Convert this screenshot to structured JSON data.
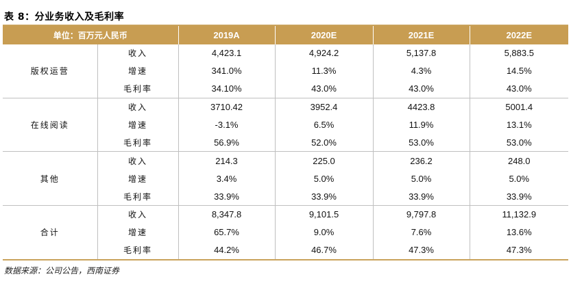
{
  "title": "表 8：分业务收入及毛利率",
  "header": {
    "unit": "单位：百万元人民币",
    "years": [
      "2019A",
      "2020E",
      "2021E",
      "2022E"
    ]
  },
  "groups": [
    {
      "name": "版权运营",
      "rows": [
        {
          "metric": "收入",
          "values": [
            "4,423.1",
            "4,924.2",
            "5,137.8",
            "5,883.5"
          ]
        },
        {
          "metric": "增速",
          "values": [
            "341.0%",
            "11.3%",
            "4.3%",
            "14.5%"
          ]
        },
        {
          "metric": "毛利率",
          "values": [
            "34.10%",
            "43.0%",
            "43.0%",
            "43.0%"
          ]
        }
      ]
    },
    {
      "name": "在线阅读",
      "rows": [
        {
          "metric": "收入",
          "values": [
            "3710.42",
            "3952.4",
            "4423.8",
            "5001.4"
          ]
        },
        {
          "metric": "增速",
          "values": [
            "-3.1%",
            "6.5%",
            "11.9%",
            "13.1%"
          ]
        },
        {
          "metric": "毛利率",
          "values": [
            "56.9%",
            "52.0%",
            "53.0%",
            "53.0%"
          ]
        }
      ]
    },
    {
      "name": "其他",
      "rows": [
        {
          "metric": "收入",
          "values": [
            "214.3",
            "225.0",
            "236.2",
            "248.0"
          ]
        },
        {
          "metric": "增速",
          "values": [
            "3.4%",
            "5.0%",
            "5.0%",
            "5.0%"
          ]
        },
        {
          "metric": "毛利率",
          "values": [
            "33.9%",
            "33.9%",
            "33.9%",
            "33.9%"
          ]
        }
      ]
    },
    {
      "name": "合计",
      "rows": [
        {
          "metric": "收入",
          "values": [
            "8,347.8",
            "9,101.5",
            "9,797.8",
            "11,132.9"
          ]
        },
        {
          "metric": "增速",
          "values": [
            "65.7%",
            "9.0%",
            "7.6%",
            "13.6%"
          ]
        },
        {
          "metric": "毛利率",
          "values": [
            "44.2%",
            "46.7%",
            "47.3%",
            "47.3%"
          ]
        }
      ]
    }
  ],
  "source": "数据来源：公司公告，西南证券",
  "colors": {
    "header_fill": "#c89d52",
    "rule": "#c9a25a",
    "grid_line": "#bfbfbf",
    "header_text": "#ffffff"
  }
}
